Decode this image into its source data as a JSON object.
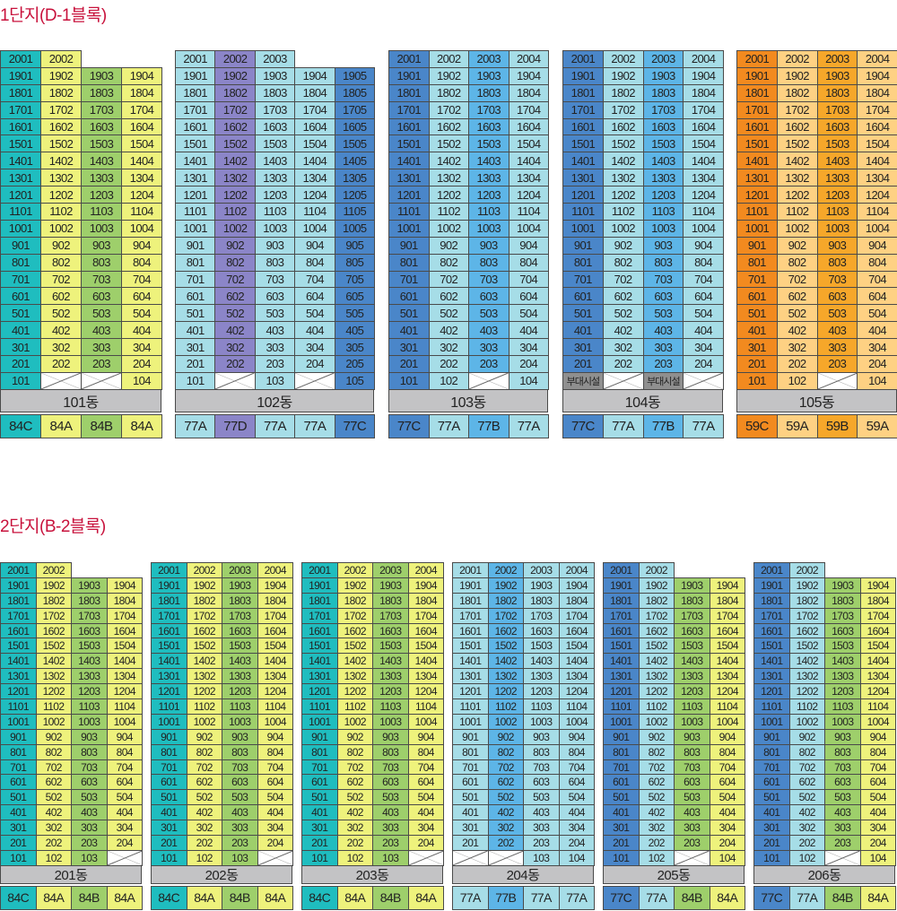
{
  "colors": {
    "84C": "#1fbdbf",
    "84A": "#eef27c",
    "84B": "#9ecf6b",
    "77A": "#a6dde7",
    "77B": "#5db5e7",
    "77C": "#4a86c9",
    "77D": "#8b85c8",
    "59C": "#f28a1f",
    "59A": "#fed183",
    "59B": "#f6a72a",
    "facility": "#8f8f8f",
    "label": "#c3c3c5",
    "title": "#c8123c"
  },
  "middle_floors": [
    19,
    18,
    17,
    16,
    15,
    14,
    13,
    12,
    11,
    10,
    9,
    8,
    7,
    6,
    5,
    4,
    3,
    2
  ],
  "complexes": [
    {
      "title": "1단지(D-1블록)",
      "buildings": [
        {
          "name": "101동",
          "types": [
            "84C",
            "84A",
            "84B",
            "84A"
          ],
          "top": [
            "2001",
            "2002"
          ],
          "ground": [
            "101",
            "x",
            "x",
            "104"
          ]
        },
        {
          "name": "102동",
          "types": [
            "77A",
            "77D",
            "77A",
            "77A",
            "77C"
          ],
          "top": [
            "2001",
            "2002",
            "2003"
          ],
          "ground": [
            "101",
            "x",
            "103",
            "x",
            "105"
          ]
        },
        {
          "name": "103동",
          "types": [
            "77C",
            "77A",
            "77B",
            "77A"
          ],
          "top": [
            "2001",
            "2002",
            "2003",
            "2004"
          ],
          "ground": [
            "101",
            "102",
            "x",
            "104"
          ]
        },
        {
          "name": "104동",
          "types": [
            "77C",
            "77A",
            "77B",
            "77A"
          ],
          "top": [
            "2001",
            "2002",
            "2003",
            "2004"
          ],
          "ground": [
            "부대시설",
            "x",
            "부대시설",
            "x"
          ]
        },
        {
          "name": "105동",
          "types": [
            "59C",
            "59A",
            "59B",
            "59A"
          ],
          "top": [
            "2001",
            "2002",
            "2003",
            "2004"
          ],
          "ground": [
            "101",
            "102",
            "x",
            "104"
          ]
        }
      ]
    },
    {
      "title": "2단지(B-2블록)",
      "buildings": [
        {
          "name": "201동",
          "types": [
            "84C",
            "84A",
            "84B",
            "84A"
          ],
          "top": [
            "2001",
            "2002"
          ],
          "ground": [
            "101",
            "102",
            "103",
            "x"
          ]
        },
        {
          "name": "202동",
          "types": [
            "84C",
            "84A",
            "84B",
            "84A"
          ],
          "top": [
            "2001",
            "2002",
            "2003",
            "2004"
          ],
          "ground": [
            "101",
            "102",
            "103",
            "x"
          ]
        },
        {
          "name": "203동",
          "types": [
            "84C",
            "84A",
            "84B",
            "84A"
          ],
          "top": [
            "2001",
            "2002",
            "2003",
            "2004"
          ],
          "ground": [
            "101",
            "102",
            "103",
            "x"
          ]
        },
        {
          "name": "204동",
          "types": [
            "77A",
            "77B",
            "77A",
            "77A"
          ],
          "top": [
            "2001",
            "2002",
            "2003",
            "2004"
          ],
          "ground": [
            "x",
            "x",
            "103",
            "104"
          ]
        },
        {
          "name": "205동",
          "types": [
            "77C",
            "77A",
            "84B",
            "84A"
          ],
          "top": [
            "2001",
            "2002"
          ],
          "ground": [
            "101",
            "102",
            "x",
            "104"
          ]
        },
        {
          "name": "206동",
          "types": [
            "77C",
            "77A",
            "84B",
            "84A"
          ],
          "top": [
            "2001",
            "2002"
          ],
          "ground": [
            "101",
            "102",
            "x",
            "104"
          ]
        }
      ]
    }
  ]
}
